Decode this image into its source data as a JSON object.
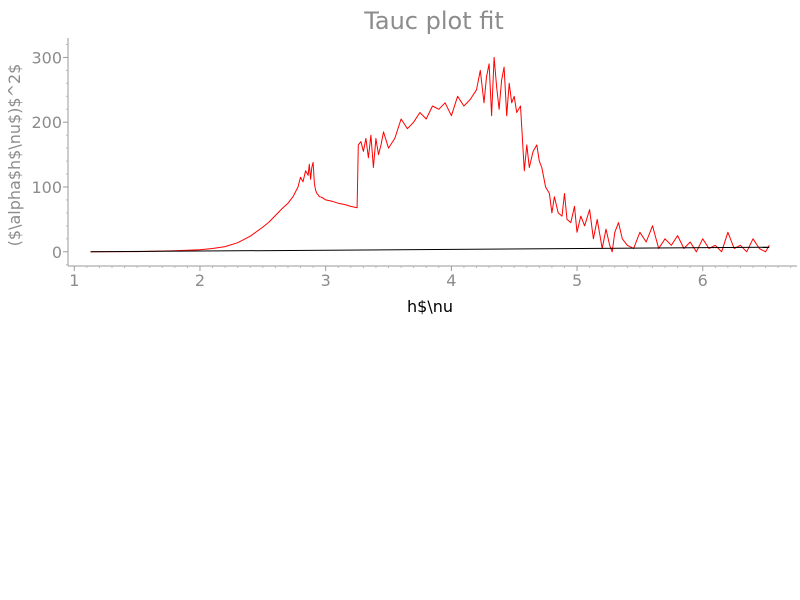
{
  "chart_data": {
    "type": "line",
    "title": "Tauc plot fit",
    "xlabel": "h$\\nu",
    "ylabel": "($\\alpha$h$\\nu$)$^2$",
    "xlim": [
      0.95,
      6.75
    ],
    "ylim": [
      -22,
      330
    ],
    "x_ticks": [
      1,
      2,
      3,
      4,
      5,
      6
    ],
    "y_ticks": [
      0,
      100,
      200,
      300
    ],
    "grid": false,
    "series": [
      {
        "color": "#ff0000",
        "x": [
          1.13,
          1.5,
          1.8,
          2.0,
          2.1,
          2.2,
          2.3,
          2.4,
          2.5,
          2.55,
          2.6,
          2.65,
          2.7,
          2.74,
          2.78,
          2.8,
          2.82,
          2.84,
          2.86,
          2.87,
          2.88,
          2.89,
          2.9,
          2.91,
          2.92,
          2.93,
          2.94,
          2.95,
          2.97,
          3.0,
          3.05,
          3.1,
          3.15,
          3.2,
          3.25,
          3.26,
          3.28,
          3.3,
          3.32,
          3.34,
          3.36,
          3.38,
          3.4,
          3.42,
          3.44,
          3.46,
          3.5,
          3.55,
          3.6,
          3.65,
          3.7,
          3.75,
          3.8,
          3.85,
          3.9,
          3.95,
          4.0,
          4.05,
          4.1,
          4.15,
          4.2,
          4.23,
          4.26,
          4.28,
          4.3,
          4.32,
          4.34,
          4.36,
          4.38,
          4.4,
          4.42,
          4.44,
          4.46,
          4.48,
          4.5,
          4.52,
          4.55,
          4.58,
          4.6,
          4.62,
          4.65,
          4.68,
          4.7,
          4.72,
          4.75,
          4.78,
          4.8,
          4.82,
          4.85,
          4.88,
          4.9,
          4.92,
          4.95,
          4.98,
          5.0,
          5.03,
          5.06,
          5.1,
          5.13,
          5.16,
          5.2,
          5.23,
          5.26,
          5.28,
          5.3,
          5.33,
          5.36,
          5.4,
          5.45,
          5.5,
          5.55,
          5.6,
          5.65,
          5.7,
          5.75,
          5.8,
          5.85,
          5.9,
          5.95,
          6.0,
          6.05,
          6.1,
          6.15,
          6.2,
          6.25,
          6.3,
          6.35,
          6.4,
          6.45,
          6.5,
          6.53
        ],
        "y": [
          0,
          0.3,
          1.5,
          3,
          5,
          8,
          14,
          24,
          38,
          46,
          56,
          66,
          75,
          85,
          100,
          115,
          108,
          125,
          118,
          135,
          112,
          130,
          138,
          105,
          95,
          90,
          88,
          85,
          84,
          80,
          78,
          75,
          73,
          70,
          68,
          165,
          170,
          155,
          175,
          145,
          180,
          130,
          175,
          150,
          165,
          185,
          160,
          175,
          205,
          190,
          200,
          215,
          205,
          225,
          220,
          230,
          210,
          240,
          225,
          235,
          250,
          280,
          230,
          270,
          290,
          210,
          300,
          255,
          220,
          265,
          285,
          210,
          260,
          230,
          240,
          215,
          225,
          125,
          165,
          130,
          155,
          165,
          140,
          130,
          100,
          90,
          60,
          85,
          60,
          55,
          90,
          50,
          45,
          70,
          30,
          55,
          40,
          65,
          20,
          50,
          5,
          35,
          10,
          0,
          30,
          45,
          20,
          10,
          5,
          30,
          15,
          40,
          5,
          20,
          10,
          25,
          5,
          15,
          0,
          20,
          5,
          10,
          0,
          30,
          5,
          10,
          0,
          20,
          5,
          0,
          10
        ]
      },
      {
        "color": "#000000",
        "x": [
          1.13,
          6.53
        ],
        "y": [
          0,
          7
        ]
      }
    ]
  }
}
